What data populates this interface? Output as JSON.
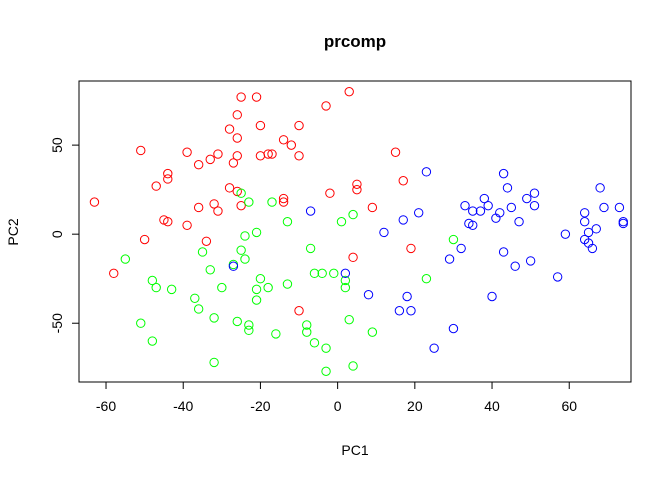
{
  "chart_data": {
    "type": "scatter",
    "title": "prcomp",
    "xlabel": "PC1",
    "ylabel": "PC2",
    "xlim": [
      -67,
      76
    ],
    "ylim": [
      -83,
      86
    ],
    "xticks": [
      -60,
      -40,
      -20,
      0,
      20,
      40,
      60
    ],
    "yticks": [
      -50,
      0,
      50
    ],
    "x_tick_labels": [
      "-60",
      "-40",
      "-20",
      "0",
      "20",
      "40",
      "60"
    ],
    "y_tick_labels": [
      "-50",
      "0",
      "50"
    ],
    "grid": false,
    "legend": "none",
    "marker": "open-circle",
    "series": [
      {
        "color": "#ff0000",
        "points": [
          [
            -63,
            18
          ],
          [
            -58,
            -22
          ],
          [
            -51,
            47
          ],
          [
            -50,
            -3
          ],
          [
            -47,
            27
          ],
          [
            -45,
            8
          ],
          [
            -44,
            7
          ],
          [
            -44,
            31
          ],
          [
            -44,
            34
          ],
          [
            -39,
            46
          ],
          [
            -39,
            5
          ],
          [
            -36,
            15
          ],
          [
            -36,
            39
          ],
          [
            -34,
            -4
          ],
          [
            -33,
            42
          ],
          [
            -32,
            17
          ],
          [
            -31,
            13
          ],
          [
            -31,
            45
          ],
          [
            -28,
            26
          ],
          [
            -28,
            59
          ],
          [
            -27,
            40
          ],
          [
            -26,
            44
          ],
          [
            -26,
            54
          ],
          [
            -26,
            67
          ],
          [
            -26,
            24
          ],
          [
            -25,
            77
          ],
          [
            -25,
            16
          ],
          [
            -21,
            77
          ],
          [
            -20,
            61
          ],
          [
            -20,
            44
          ],
          [
            -18,
            45
          ],
          [
            -17,
            45
          ],
          [
            -14,
            53
          ],
          [
            -14,
            20
          ],
          [
            -14,
            18
          ],
          [
            -12,
            50
          ],
          [
            -10,
            61
          ],
          [
            -10,
            44
          ],
          [
            -10,
            -43
          ],
          [
            -3,
            72
          ],
          [
            -2,
            23
          ],
          [
            3,
            80
          ],
          [
            4,
            -13
          ],
          [
            5,
            25
          ],
          [
            5,
            28
          ],
          [
            9,
            15
          ],
          [
            15,
            46
          ],
          [
            17,
            30
          ],
          [
            19,
            -8
          ]
        ]
      },
      {
        "color": "#00ff00",
        "points": [
          [
            -55,
            -14
          ],
          [
            -51,
            -50
          ],
          [
            -48,
            -60
          ],
          [
            -48,
            -26
          ],
          [
            -47,
            -30
          ],
          [
            -43,
            -31
          ],
          [
            -37,
            -36
          ],
          [
            -36,
            -42
          ],
          [
            -35,
            -10
          ],
          [
            -33,
            -20
          ],
          [
            -32,
            -72
          ],
          [
            -32,
            -47
          ],
          [
            -30,
            -30
          ],
          [
            -27,
            -17
          ],
          [
            -26,
            -49
          ],
          [
            -25,
            -9
          ],
          [
            -25,
            23
          ],
          [
            -24,
            -1
          ],
          [
            -24,
            -14
          ],
          [
            -23,
            -54
          ],
          [
            -23,
            -51
          ],
          [
            -23,
            18
          ],
          [
            -21,
            1
          ],
          [
            -21,
            -37
          ],
          [
            -21,
            -31
          ],
          [
            -20,
            -25
          ],
          [
            -18,
            -30
          ],
          [
            -17,
            18
          ],
          [
            -16,
            -56
          ],
          [
            -13,
            7
          ],
          [
            -13,
            -28
          ],
          [
            -8,
            -51
          ],
          [
            -8,
            -55
          ],
          [
            -7,
            -8
          ],
          [
            -6,
            -22
          ],
          [
            -6,
            -61
          ],
          [
            -4,
            -22
          ],
          [
            -3,
            -64
          ],
          [
            -3,
            -77
          ],
          [
            -1,
            -22
          ],
          [
            1,
            7
          ],
          [
            2,
            -26
          ],
          [
            2,
            -30
          ],
          [
            3,
            -48
          ],
          [
            4,
            11
          ],
          [
            4,
            -74
          ],
          [
            9,
            -55
          ],
          [
            23,
            -25
          ],
          [
            30,
            -3
          ]
        ]
      },
      {
        "color": "#0000ff",
        "points": [
          [
            -27,
            -18
          ],
          [
            -7,
            13
          ],
          [
            2,
            -22
          ],
          [
            8,
            -34
          ],
          [
            12,
            1
          ],
          [
            16,
            -43
          ],
          [
            17,
            8
          ],
          [
            18,
            -35
          ],
          [
            19,
            -43
          ],
          [
            21,
            12
          ],
          [
            23,
            35
          ],
          [
            25,
            -64
          ],
          [
            29,
            -14
          ],
          [
            30,
            -53
          ],
          [
            32,
            -8
          ],
          [
            33,
            16
          ],
          [
            34,
            6
          ],
          [
            35,
            13
          ],
          [
            35,
            5
          ],
          [
            37,
            13
          ],
          [
            38,
            20
          ],
          [
            39,
            16
          ],
          [
            40,
            -35
          ],
          [
            41,
            9
          ],
          [
            42,
            12
          ],
          [
            43,
            34
          ],
          [
            43,
            -10
          ],
          [
            44,
            26
          ],
          [
            45,
            15
          ],
          [
            46,
            -18
          ],
          [
            47,
            7
          ],
          [
            49,
            20
          ],
          [
            50,
            -15
          ],
          [
            51,
            16
          ],
          [
            51,
            23
          ],
          [
            57,
            -24
          ],
          [
            59,
            0
          ],
          [
            64,
            12
          ],
          [
            64,
            7
          ],
          [
            64,
            -3
          ],
          [
            65,
            -5
          ],
          [
            65,
            1
          ],
          [
            66,
            -8
          ],
          [
            67,
            3
          ],
          [
            68,
            26
          ],
          [
            69,
            15
          ],
          [
            73,
            15
          ],
          [
            74,
            7
          ],
          [
            74,
            6
          ]
        ]
      }
    ]
  }
}
